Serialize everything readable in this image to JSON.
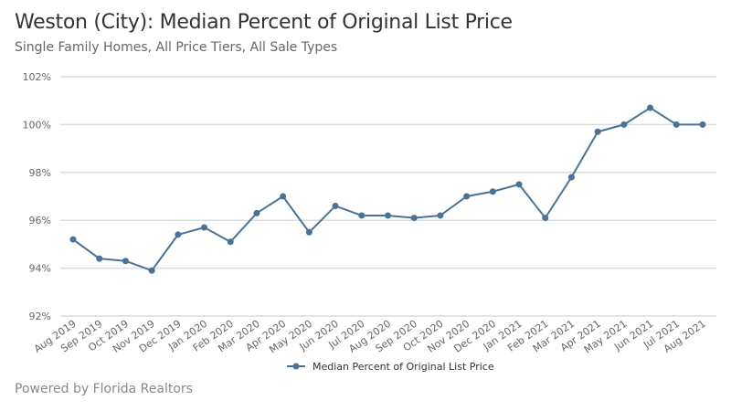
{
  "header": {
    "title": "Weston (City): Median Percent of Original List Price",
    "subtitle": "Single Family Homes, All Price Tiers, All Sale Types"
  },
  "footer": {
    "text": "Powered by Florida Realtors"
  },
  "chart_data": {
    "type": "line",
    "title": "Weston (City): Median Percent of Original List Price",
    "subtitle": "Single Family Homes, All Price Tiers, All Sale Types",
    "xlabel": "",
    "ylabel": "",
    "ylim": [
      92,
      102
    ],
    "yticks": [
      "92%",
      "94%",
      "96%",
      "98%",
      "100%",
      "102%"
    ],
    "grid": true,
    "legend_position": "bottom",
    "categories": [
      "Aug 2019",
      "Sep 2019",
      "Oct 2019",
      "Nov 2019",
      "Dec 2019",
      "Jan 2020",
      "Feb 2020",
      "Mar 2020",
      "Apr 2020",
      "May 2020",
      "Jun 2020",
      "Jul 2020",
      "Aug 2020",
      "Sep 2020",
      "Oct 2020",
      "Nov 2020",
      "Dec 2020",
      "Jan 2021",
      "Feb 2021",
      "Mar 2021",
      "Apr 2021",
      "May 2021",
      "Jun 2021",
      "Jul 2021",
      "Aug 2021"
    ],
    "series": [
      {
        "name": "Median Percent of Original List Price",
        "color": "#4a7296",
        "values": [
          95.2,
          94.4,
          94.3,
          93.9,
          95.4,
          95.7,
          95.1,
          96.3,
          97.0,
          95.5,
          96.6,
          96.2,
          96.2,
          96.1,
          96.2,
          97.0,
          97.2,
          97.5,
          96.1,
          97.8,
          99.7,
          100.0,
          100.7,
          100.0,
          100.0
        ]
      }
    ]
  }
}
